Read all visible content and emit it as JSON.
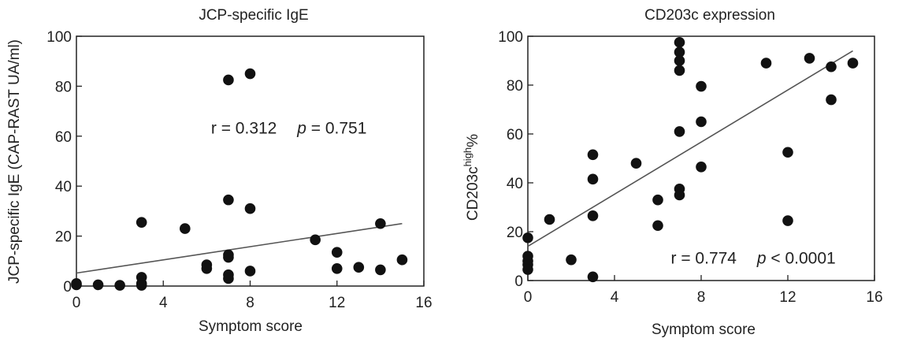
{
  "chart_data": [
    {
      "type": "scatter",
      "title": "JCP-specific IgE",
      "xlabel": "Symptom score",
      "ylabel": "JCP-specific IgE (CAP-RAST UA/ml)",
      "xlim": [
        0,
        16
      ],
      "ylim": [
        0,
        100
      ],
      "xticks": [
        0,
        4,
        8,
        12,
        16
      ],
      "yticks": [
        0,
        20,
        40,
        60,
        80,
        100
      ],
      "points": [
        [
          0,
          0.5
        ],
        [
          0,
          1
        ],
        [
          1,
          0.5
        ],
        [
          2,
          0.3
        ],
        [
          3,
          25.5
        ],
        [
          3,
          3.5
        ],
        [
          3,
          1
        ],
        [
          3,
          0.3
        ],
        [
          5,
          23
        ],
        [
          6,
          8.5
        ],
        [
          6,
          7
        ],
        [
          7,
          82.5
        ],
        [
          7,
          34.5
        ],
        [
          7,
          12.5
        ],
        [
          7,
          11.5
        ],
        [
          7,
          4.5
        ],
        [
          7,
          3
        ],
        [
          8,
          85
        ],
        [
          8,
          31
        ],
        [
          8,
          6
        ],
        [
          11,
          18.5
        ],
        [
          12,
          13.5
        ],
        [
          12,
          7
        ],
        [
          13,
          7.5
        ],
        [
          14,
          25
        ],
        [
          14,
          6.5
        ],
        [
          15,
          10.5
        ]
      ],
      "fit_line": [
        [
          0,
          5.2
        ],
        [
          15,
          25
        ]
      ],
      "annotation": {
        "r_label": "r = 0.312",
        "p_symbol": "p",
        "p_text": " = 0.751",
        "x": 6.2,
        "y": 61
      },
      "grid": false,
      "legend": "none"
    },
    {
      "type": "scatter",
      "title": "CD203c expression",
      "xlabel": "Symptom score",
      "ylabel": "CD203c",
      "ylabel_sup": "high",
      "ylabel_suffix": "%",
      "xlim": [
        0,
        16
      ],
      "ylim": [
        0,
        100
      ],
      "xticks": [
        0,
        4,
        8,
        12,
        16
      ],
      "yticks": [
        0,
        20,
        40,
        60,
        80,
        100
      ],
      "points": [
        [
          0,
          17.5
        ],
        [
          0,
          10
        ],
        [
          0,
          8
        ],
        [
          0,
          6.5
        ],
        [
          0,
          4.5
        ],
        [
          1,
          25
        ],
        [
          2,
          8.5
        ],
        [
          3,
          51.5
        ],
        [
          3,
          41.5
        ],
        [
          3,
          26.5
        ],
        [
          3,
          1.5
        ],
        [
          5,
          48
        ],
        [
          6,
          33
        ],
        [
          6,
          22.5
        ],
        [
          7,
          97.5
        ],
        [
          7,
          93.5
        ],
        [
          7,
          90
        ],
        [
          7,
          86
        ],
        [
          7,
          61
        ],
        [
          7,
          37.5
        ],
        [
          7,
          35
        ],
        [
          8,
          79.5
        ],
        [
          8,
          65
        ],
        [
          8,
          46.5
        ],
        [
          11,
          89
        ],
        [
          12,
          52.5
        ],
        [
          12,
          24.5
        ],
        [
          13,
          91
        ],
        [
          14,
          87.5
        ],
        [
          14,
          74
        ],
        [
          15,
          89
        ]
      ],
      "fit_line": [
        [
          0,
          14
        ],
        [
          15,
          94
        ]
      ],
      "annotation": {
        "r_label": "r = 0.774",
        "p_symbol": "p",
        "p_text": " < 0.0001",
        "x": 6.6,
        "y": 7
      },
      "grid": false,
      "legend": "none"
    }
  ]
}
